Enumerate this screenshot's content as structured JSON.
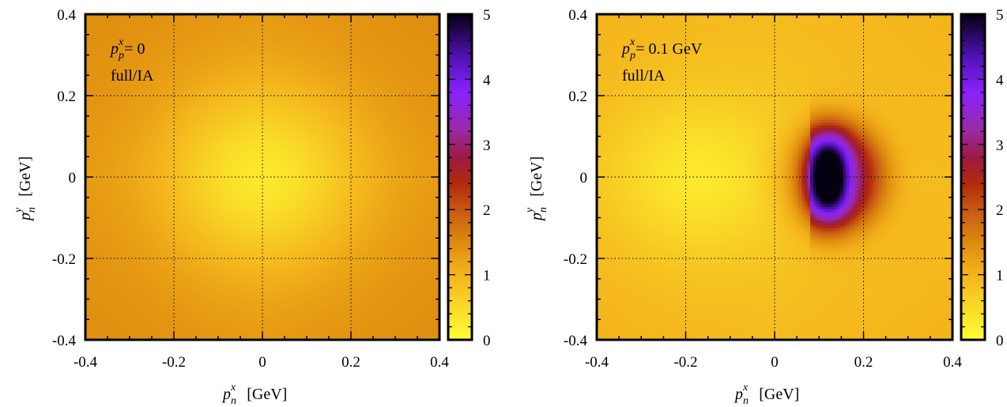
{
  "chart_data": [
    {
      "type": "heatmap",
      "x_range": [
        -0.4,
        0.4
      ],
      "y_range": [
        -0.4,
        0.4
      ],
      "xticks": [
        "-0.4",
        "-0.2",
        "0",
        "0.2",
        "0.4"
      ],
      "yticks": [
        "-0.4",
        "-0.2",
        "0",
        "0.2",
        "0.4"
      ],
      "xlabel": {
        "var": "p",
        "sub": "n",
        "sup": "x",
        "unit": "[GeV]"
      },
      "ylabel": {
        "var": "p",
        "sub": "n",
        "sup": "y",
        "unit": "[GeV]"
      },
      "annotation": {
        "var": "p",
        "sub": "p",
        "sup": "x",
        "value": "= 0",
        "line2": "full/IA"
      },
      "colorbar": {
        "range": [
          0,
          5
        ],
        "ticks": [
          "0",
          "1",
          "2",
          "3",
          "4",
          "5"
        ]
      },
      "grid": true,
      "field": {
        "background": 1.2,
        "center_min": 0.3,
        "center_x": 0.0,
        "center_y": 0.0,
        "width": 0.15
      }
    },
    {
      "type": "heatmap",
      "x_range": [
        -0.4,
        0.4
      ],
      "y_range": [
        -0.4,
        0.4
      ],
      "xticks": [
        "-0.4",
        "-0.2",
        "0",
        "0.2",
        "0.4"
      ],
      "yticks": [
        "-0.4",
        "-0.2",
        "0",
        "0.2",
        "0.4"
      ],
      "xlabel": {
        "var": "p",
        "sub": "n",
        "sup": "x",
        "unit": "[GeV]"
      },
      "ylabel": {
        "var": "p",
        "sub": "n",
        "sup": "y",
        "unit": "[GeV]"
      },
      "annotation": {
        "var": "p",
        "sub": "p",
        "sup": "x",
        "value": "= 0.1 GeV",
        "line2": "full/IA"
      },
      "colorbar": {
        "range": [
          0,
          5
        ],
        "ticks": [
          "0",
          "1",
          "2",
          "3",
          "4",
          "5"
        ]
      },
      "grid": true,
      "field": {
        "background": 0.8,
        "peak_value": 5.0,
        "peak_x": 0.12,
        "peak_y": 0.0,
        "valley_x": -0.18,
        "valley_y": 0.0
      }
    }
  ]
}
